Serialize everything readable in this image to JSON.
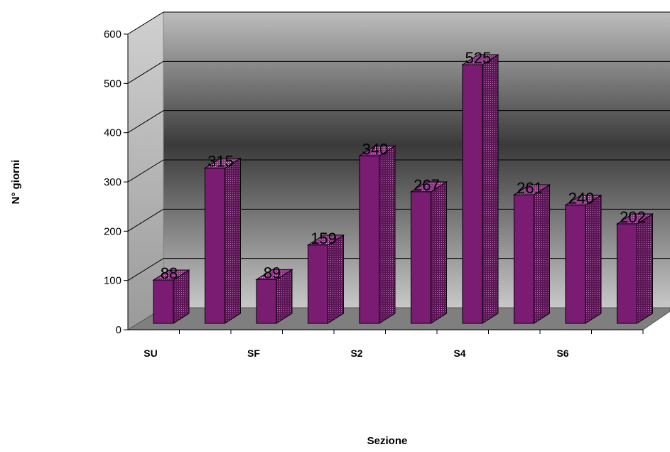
{
  "chart_data": {
    "type": "bar",
    "title": "",
    "xlabel": "Sezione",
    "ylabel": "N° giorni",
    "ylim": [
      0,
      600
    ],
    "yticks": [
      0,
      100,
      200,
      300,
      400,
      500,
      600
    ],
    "categories": [
      "SU",
      "",
      "SF",
      "",
      "S2",
      "",
      "S4",
      "",
      "S6",
      ""
    ],
    "values": [
      88,
      315,
      89,
      159,
      340,
      267,
      525,
      261,
      240,
      202
    ],
    "data_labels": [
      "88",
      "315",
      "89",
      "159",
      "340",
      "267",
      "525",
      "261",
      "240",
      "202"
    ],
    "bar_color": "#7a1c72",
    "grid": true,
    "legend": "none"
  }
}
